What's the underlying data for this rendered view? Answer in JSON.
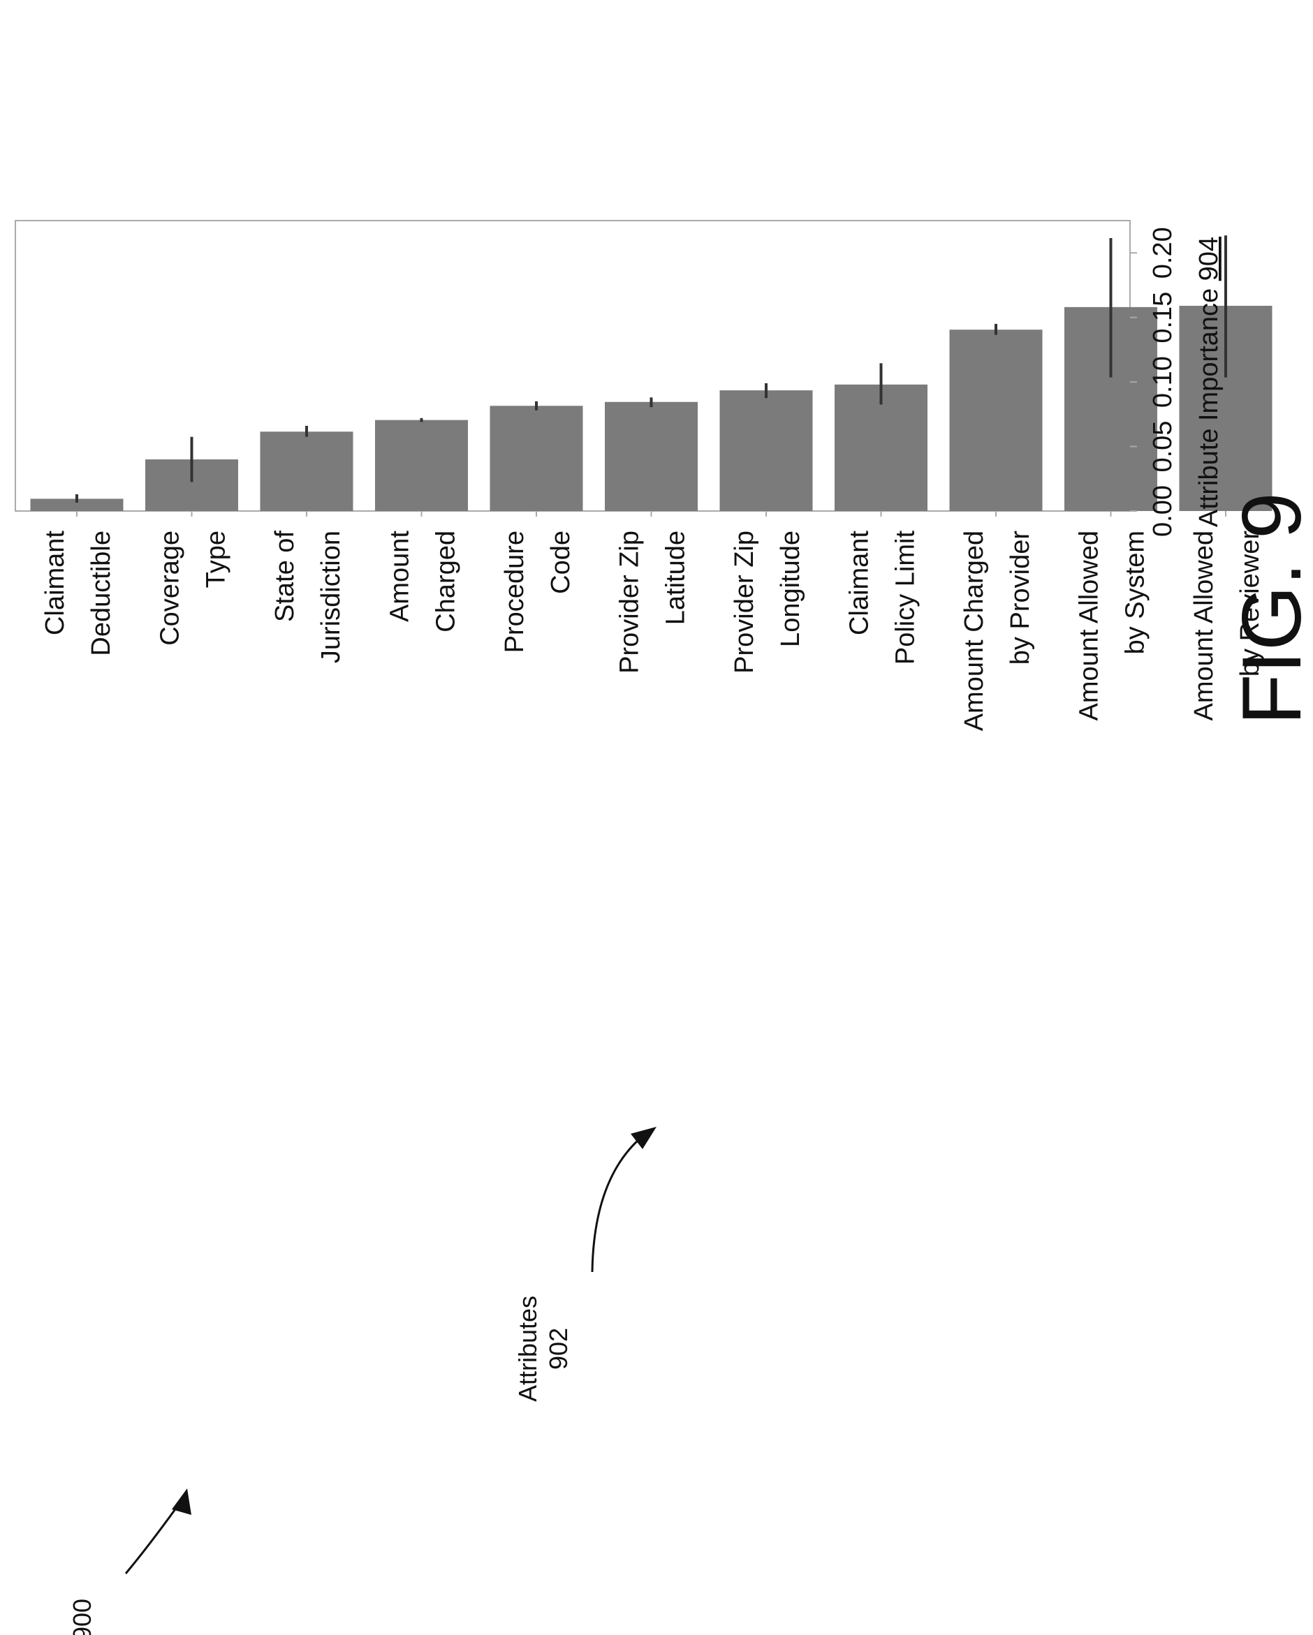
{
  "figure": {
    "fig_label": "FIG. 9",
    "ref_figure": "900",
    "ref_attributes": "Attributes\n902",
    "axis_title_text": "Attribute Importance ",
    "axis_title_ref": "904"
  },
  "chart_data": {
    "type": "bar",
    "orientation": "vertical bars, figure rotated 90° counter-clockwise on the page",
    "categories": [
      "Claimant\nDeductible",
      "Coverage\nType",
      "State of\nJurisdiction",
      "Amount\nCharged",
      "Procedure\nCode",
      "Provider Zip\nLatitude",
      "Provider Zip\nLongitude",
      "Claimant\nPolicy Limit",
      "Amount Charged\nby Provider",
      "Amount Allowed\nby System",
      "Amount Allowed\nby Reviewer"
    ],
    "values": [
      0.0095,
      0.04,
      0.0615,
      0.0705,
      0.0815,
      0.0845,
      0.0935,
      0.098,
      0.1405,
      0.158,
      0.159
    ],
    "error_low": [
      0.0065,
      0.0225,
      0.0575,
      0.069,
      0.078,
      0.0805,
      0.0875,
      0.0825,
      0.1365,
      0.1035,
      0.1035
    ],
    "error_high": [
      0.013,
      0.0575,
      0.066,
      0.072,
      0.085,
      0.088,
      0.099,
      0.1145,
      0.145,
      0.2115,
      0.2135
    ],
    "ylabel": "Attribute Importance 904",
    "ylim": [
      0.0,
      0.225
    ],
    "yticks": [
      "0.00",
      "0.05",
      "0.10",
      "0.15",
      "0.20"
    ],
    "grid": false,
    "bar_color": "#7b7b7b",
    "error_color": "#333333"
  }
}
